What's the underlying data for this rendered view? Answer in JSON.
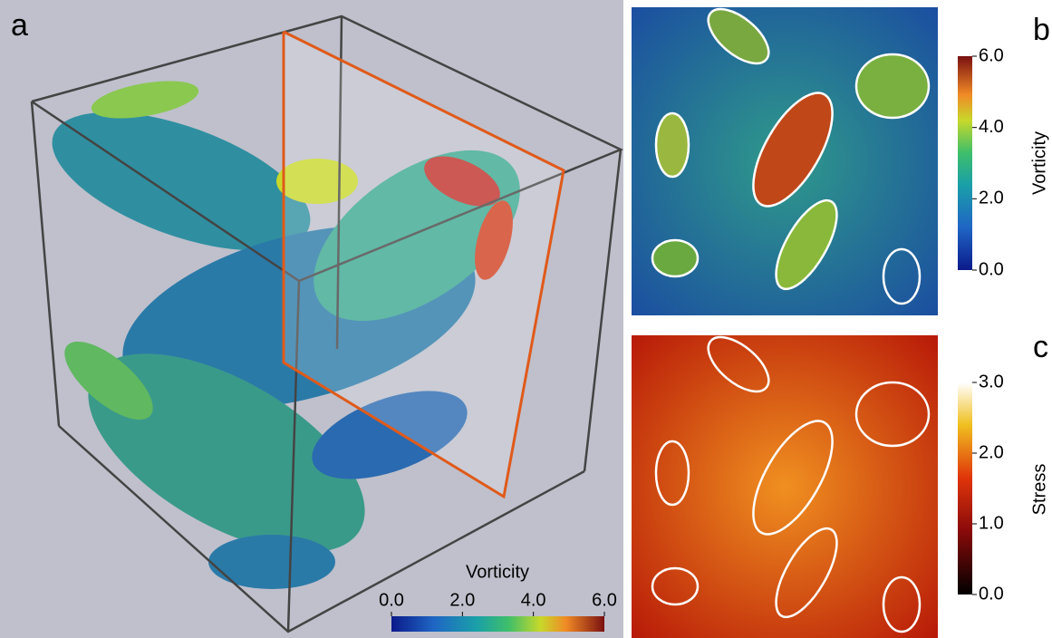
{
  "panels": [
    {
      "label": "a",
      "colorbar": {
        "title": "Vorticity",
        "range": [
          0,
          6
        ],
        "ticks": [
          {
            "value": 0,
            "label": "0.0"
          },
          {
            "value": 2,
            "label": "2.0"
          },
          {
            "value": 4,
            "label": "4.0"
          },
          {
            "value": 6,
            "label": "6.0"
          }
        ]
      }
    },
    {
      "label": "b",
      "colorbar": {
        "title": "Vorticity",
        "range": [
          0,
          6
        ],
        "ticks": [
          {
            "value": 0,
            "label": "0.0"
          },
          {
            "value": 2,
            "label": "2.0"
          },
          {
            "value": 4,
            "label": "4.0"
          },
          {
            "value": 6,
            "label": "6.0"
          }
        ]
      }
    },
    {
      "label": "c",
      "colorbar": {
        "title": "Stress",
        "range": [
          0,
          3
        ],
        "ticks": [
          {
            "value": 0,
            "label": "0.0"
          },
          {
            "value": 1,
            "label": "1.0"
          },
          {
            "value": 2,
            "label": "2.0"
          },
          {
            "value": 3,
            "label": "3.0"
          }
        ]
      }
    }
  ]
}
